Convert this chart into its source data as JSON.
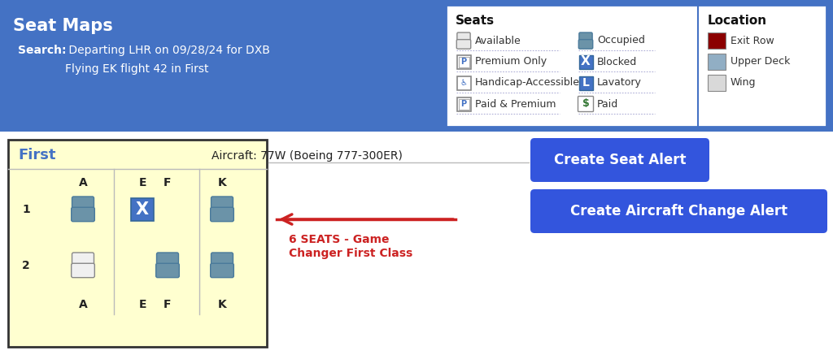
{
  "title": "Seat Maps",
  "search_bold": "Search:",
  "search_line1": " Departing LHR on 09/28/24 for DXB",
  "search_line2": "Flying EK flight 42 in First",
  "header_bg": "#4472c4",
  "header_text_color": "#ffffff",
  "legend_bg": "#ffffff",
  "legend_border": "#4472c4",
  "seats_title": "Seats",
  "location_title": "Location",
  "seat_items_col1": [
    "Available",
    "Premium Only",
    "Handicap-Accessible",
    "Paid & Premium"
  ],
  "seat_items_col2": [
    "Occupied",
    "Blocked",
    "Lavatory",
    "Paid"
  ],
  "location_items": [
    "Exit Row",
    "Upper Deck",
    "Wing"
  ],
  "location_colors": [
    "#8b0000",
    "#91aec4",
    "#d9d9d9"
  ],
  "first_class_bg": "#ffffd0",
  "first_class_border": "#333333",
  "first_label": "First",
  "first_label_color": "#4472c4",
  "col_labels_top": [
    "A",
    "E",
    "F",
    "K"
  ],
  "col_labels_bot": [
    "A",
    "E",
    "F",
    "K"
  ],
  "row_labels": [
    "1",
    "2"
  ],
  "aircraft_text": "Aircraft: 77W (Boeing 777-300ER)",
  "arrow_text_line1": "6 SEATS - Game",
  "arrow_text_line2": "Changer First Class",
  "arrow_color": "#cc2222",
  "btn1_text": "Create Seat Alert",
  "btn2_text": "Create Aircraft Change Alert",
  "btn_bg": "#3355dd",
  "btn_text_color": "#ffffff",
  "seat_blue_color": "#6b93a8",
  "seat_blocked_bg": "#4472c4",
  "white_bg": "#ffffff",
  "divider_color": "#bbbbbb",
  "map_border_color": "#333333",
  "map_bg": "#ffffd0"
}
